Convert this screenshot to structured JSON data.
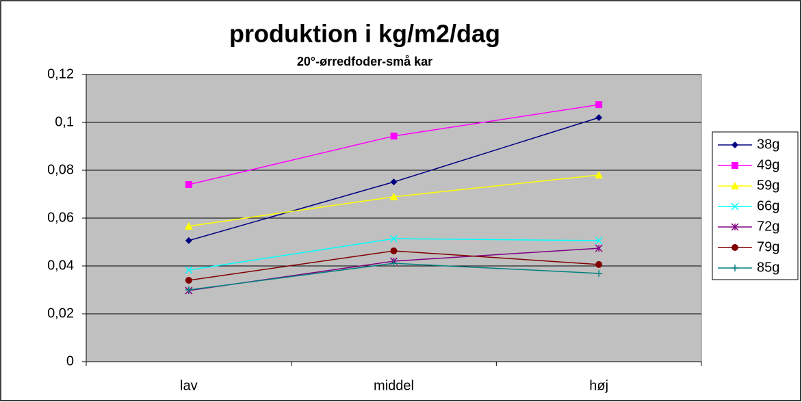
{
  "chart_data": {
    "type": "line",
    "title": "produktion i kg/m2/dag",
    "subtitle": "20°-ørredfoder-små kar",
    "categories": [
      "lav",
      "middel",
      "høj"
    ],
    "series": [
      {
        "name": "38g",
        "color": "#000080",
        "marker": "diamond",
        "values": [
          0.0506,
          0.0751,
          0.102
        ]
      },
      {
        "name": "49g",
        "color": "#ff00ff",
        "marker": "square",
        "values": [
          0.074,
          0.0943,
          0.1074
        ]
      },
      {
        "name": "59g",
        "color": "#ffff00",
        "marker": "triangle",
        "values": [
          0.0566,
          0.0689,
          0.078
        ]
      },
      {
        "name": "66g",
        "color": "#00ffff",
        "marker": "x",
        "values": [
          0.0383,
          0.0514,
          0.0506
        ]
      },
      {
        "name": "72g",
        "color": "#800080",
        "marker": "star",
        "values": [
          0.0297,
          0.042,
          0.0474
        ]
      },
      {
        "name": "79g",
        "color": "#800000",
        "marker": "circle",
        "values": [
          0.034,
          0.0463,
          0.0406
        ]
      },
      {
        "name": "85g",
        "color": "#008080",
        "marker": "plus",
        "values": [
          0.03,
          0.0411,
          0.0369
        ]
      }
    ],
    "ylim": [
      0,
      0.12
    ],
    "yticks": [
      0,
      {
        "value": 0.02,
        "label": "0,02"
      },
      {
        "value": 0.04,
        "label": "0,04"
      },
      {
        "value": 0.06,
        "label": "0,06"
      },
      {
        "value": 0.08,
        "label": "0,08"
      },
      {
        "value": 0.1,
        "label": "0,1"
      },
      {
        "value": 0.12,
        "label": "0,12"
      }
    ],
    "grid": true,
    "legend": "right"
  }
}
